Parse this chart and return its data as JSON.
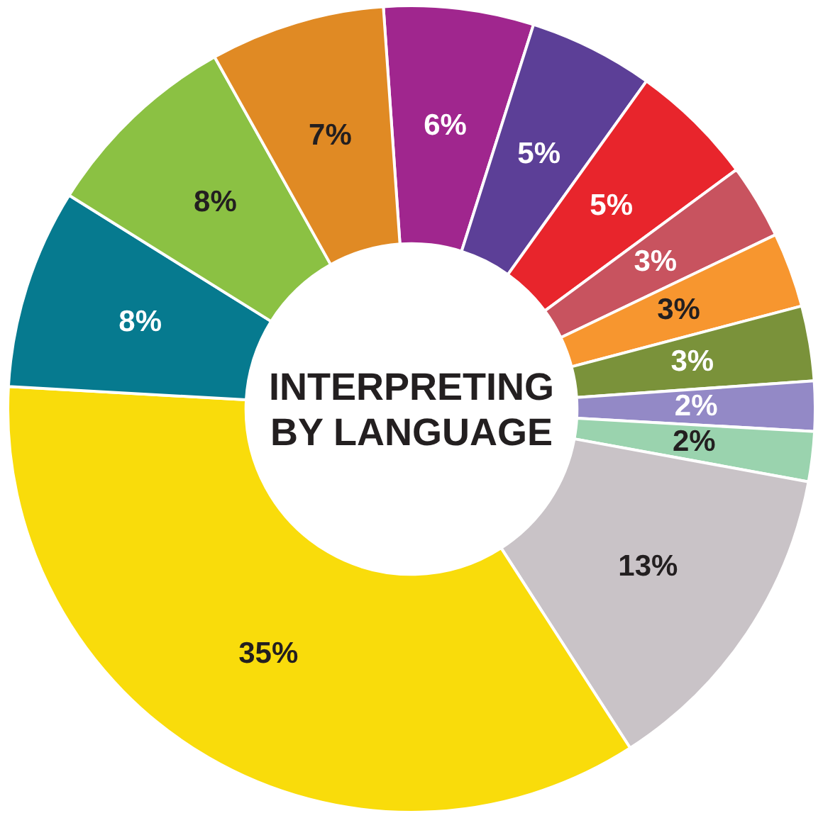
{
  "chart_data": {
    "type": "donut",
    "title": "INTERPRETING BY LANGUAGE",
    "categories": [
      null,
      null,
      null,
      null,
      null,
      null,
      null,
      null,
      null,
      null,
      null,
      null,
      null
    ],
    "values": [
      6,
      5,
      5,
      3,
      3,
      3,
      2,
      2,
      13,
      35,
      8,
      8,
      7
    ],
    "value_labels": [
      "6%",
      "5%",
      "5%",
      "3%",
      "3%",
      "3%",
      "2%",
      "2%",
      "13%",
      "35%",
      "8%",
      "8%",
      "7%"
    ],
    "colors": [
      "#a0268e",
      "#5c3f97",
      "#e8252c",
      "#c8535f",
      "#f7962f",
      "#7a923a",
      "#9389c6",
      "#9ad3ae",
      "#c9c3c7",
      "#f9dc0b",
      "#067a8f",
      "#8bc143",
      "#e08a24"
    ],
    "legend": false
  }
}
